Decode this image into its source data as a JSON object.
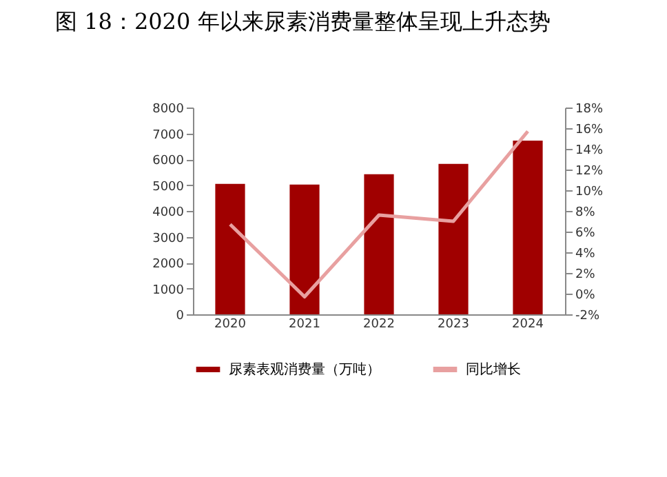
{
  "chart_data": {
    "type": "bar",
    "title": "图 18：2020 年以来尿素消费量整体呈现上升态势",
    "categories": [
      "2020",
      "2021",
      "2022",
      "2023",
      "2024"
    ],
    "series": [
      {
        "name": "尿素表观消费量（万吨）",
        "color": "#a00000",
        "values": [
          5050,
          5020,
          5420,
          5820,
          6720
        ]
      },
      {
        "name": "同比增长",
        "type": "line",
        "axis": "y2",
        "color": "#e8a0a0",
        "values": [
          6.7,
          -0.3,
          7.6,
          7.0,
          15.7
        ]
      }
    ],
    "ylim": [
      0,
      8000
    ],
    "yticks": [
      0,
      1000,
      2000,
      3000,
      4000,
      5000,
      6000,
      7000,
      8000
    ],
    "y2lim": [
      -2,
      18
    ],
    "y2ticks": [
      {
        "value": -2,
        "label": "-2%"
      },
      {
        "value": 0,
        "label": "0%"
      },
      {
        "value": 2,
        "label": "2%"
      },
      {
        "value": 4,
        "label": "4%"
      },
      {
        "value": 6,
        "label": "6%"
      },
      {
        "value": 8,
        "label": "8%"
      },
      {
        "value": 10,
        "label": "10%"
      },
      {
        "value": 12,
        "label": "12%"
      },
      {
        "value": 14,
        "label": "14%"
      },
      {
        "value": 16,
        "label": "16%"
      },
      {
        "value": 18,
        "label": "18%"
      }
    ],
    "grid": false,
    "legend": "bottom",
    "marker": "none",
    "line_style": "solid"
  }
}
